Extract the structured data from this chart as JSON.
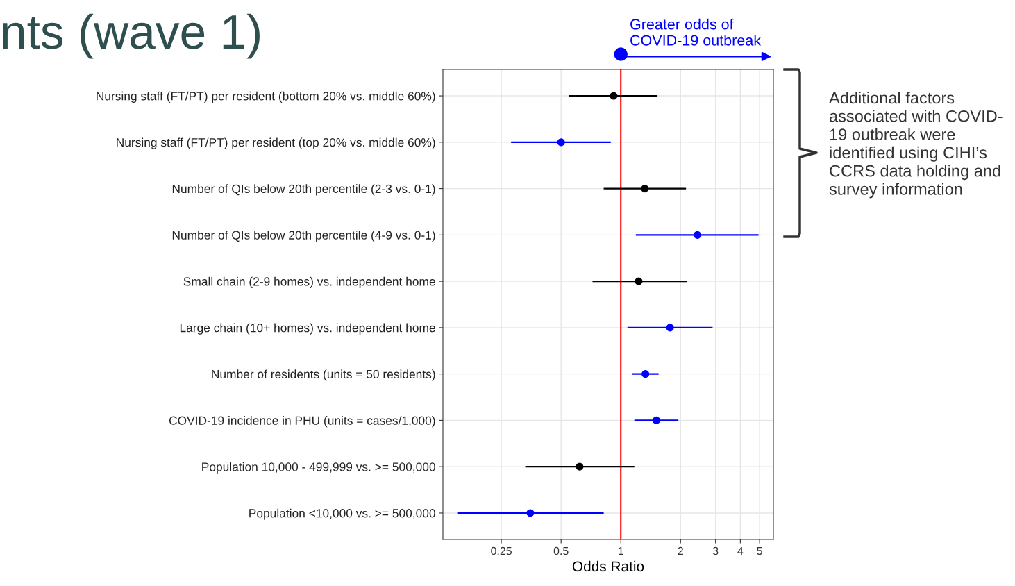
{
  "chart_data": {
    "type": "scatter",
    "orientation": "horizontal",
    "title": "nts (wave 1)",
    "xlabel": "Odds Ratio",
    "categories": [
      "Nursing staff (FT/PT) per resident (bottom 20% vs. middle 60%)",
      "Nursing staff (FT/PT) per resident (top 20% vs. middle 60%)",
      "Number of QIs below 20th percentile (2-3 vs. 0-1)",
      "Number of QIs below 20th percentile (4-9 vs. 0-1)",
      "Small chain (2-9 homes) vs. independent home",
      "Large chain (10+ homes) vs. independent home",
      "Number of residents (units = 50 residents)",
      "COVID-19 incidence in PHU (units = cases/1,000)",
      "Population 10,000 - 499,999 vs. >= 500,000",
      "Population <10,000 vs. >= 500,000"
    ],
    "values": [
      0.92,
      0.5,
      1.32,
      2.43,
      1.23,
      1.77,
      1.33,
      1.51,
      0.62,
      0.35
    ],
    "errors": [
      [
        0.55,
        1.53
      ],
      [
        0.28,
        0.89
      ],
      [
        0.82,
        2.13
      ],
      [
        1.19,
        4.94
      ],
      [
        0.72,
        2.15
      ],
      [
        1.08,
        2.9
      ],
      [
        1.14,
        1.55
      ],
      [
        1.17,
        1.95
      ],
      [
        0.33,
        1.17
      ],
      [
        0.15,
        0.82
      ]
    ],
    "colors": [
      "#000000",
      "#0000ff",
      "#000000",
      "#0000ff",
      "#000000",
      "#0000ff",
      "#0000ff",
      "#0000ff",
      "#000000",
      "#0000ff"
    ],
    "marker": "circle",
    "log": "x",
    "grid": true,
    "xlim": [
      0.127,
      5.87
    ],
    "xticks": [
      0.25,
      0.5,
      1,
      2,
      3,
      4,
      5
    ],
    "ref_lines": [
      {
        "axis": "x",
        "value": 1,
        "color": "#ff0000"
      }
    ],
    "annotations": [
      "Greater odds of\nCOVID-19 outbreak",
      "Additional factors\nassociated with COVID-\n19 outbreak were\nidentified using CIHI’s\nCCRS data holding and\nsurvey information"
    ]
  }
}
